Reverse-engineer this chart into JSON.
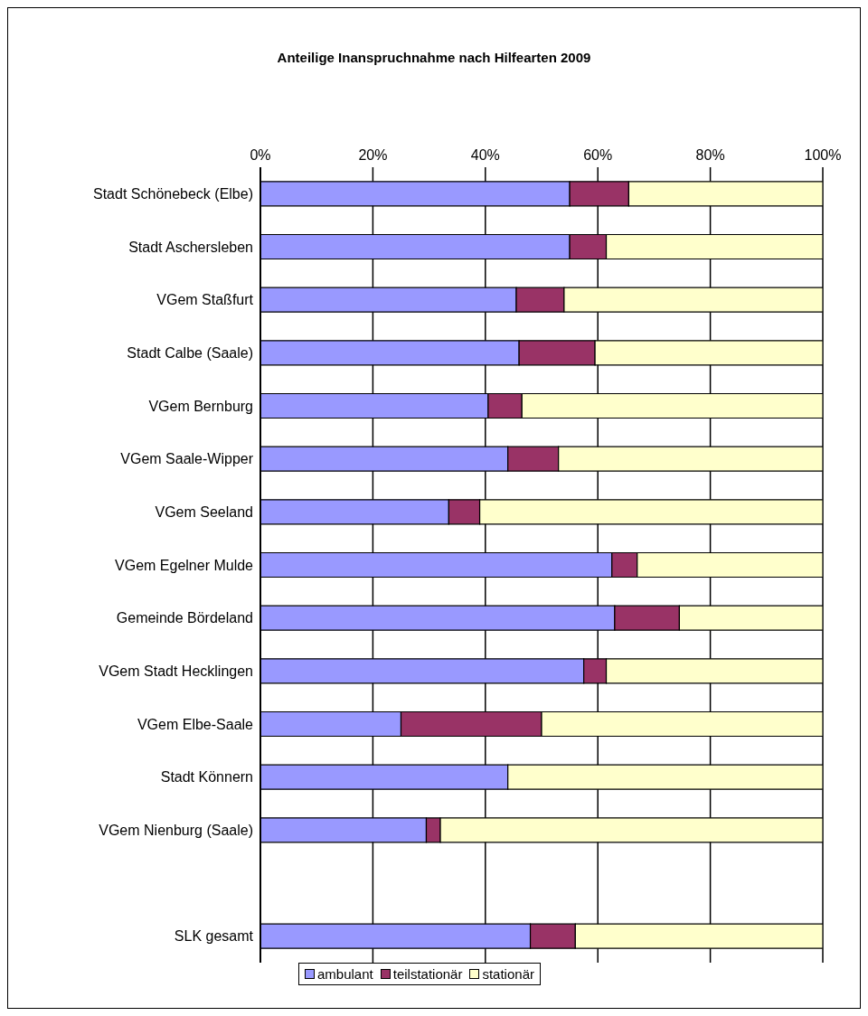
{
  "chart_data": {
    "type": "bar",
    "title": "Anteilige Inanspruchnahme nach Hilfearten 2009",
    "orientation": "horizontal",
    "stacked": true,
    "categories": [
      "Stadt Schönebeck (Elbe)",
      "Stadt Aschersleben",
      "VGem Staßfurt",
      "Stadt Calbe (Saale)",
      "VGem Bernburg",
      "VGem Saale-Wipper",
      "VGem Seeland",
      "VGem Egelner Mulde",
      "Gemeinde Bördeland",
      "VGem Stadt Hecklingen",
      "VGem Elbe-Saale",
      "Stadt Könnern",
      "VGem Nienburg (Saale)",
      null,
      "SLK gesamt"
    ],
    "series": [
      {
        "name": "ambulant",
        "color": "#9999ff",
        "values": [
          55,
          55,
          45.5,
          46,
          40.5,
          44,
          33.5,
          62.5,
          63,
          57.5,
          25,
          44,
          29.5,
          null,
          48
        ]
      },
      {
        "name": "teilstationär",
        "color": "#993366",
        "values": [
          10.5,
          6.5,
          8.5,
          13.5,
          6,
          9,
          5.5,
          4.5,
          11.5,
          4,
          25,
          0,
          2.5,
          null,
          8
        ]
      },
      {
        "name": "stationär",
        "color": "#ffffcc",
        "values": [
          34.5,
          38.5,
          46,
          40.5,
          53.5,
          47,
          61,
          33,
          25.5,
          38.5,
          50,
          56,
          68,
          null,
          44
        ]
      }
    ],
    "xlim": [
      0,
      100
    ],
    "xticks": [
      {
        "value": 0,
        "label": "0%"
      },
      {
        "value": 20,
        "label": "20%"
      },
      {
        "value": 40,
        "label": "40%"
      },
      {
        "value": 60,
        "label": "60%"
      },
      {
        "value": 80,
        "label": "80%"
      },
      {
        "value": 100,
        "label": "100%"
      }
    ],
    "grid": "x",
    "legend": "bottom"
  }
}
